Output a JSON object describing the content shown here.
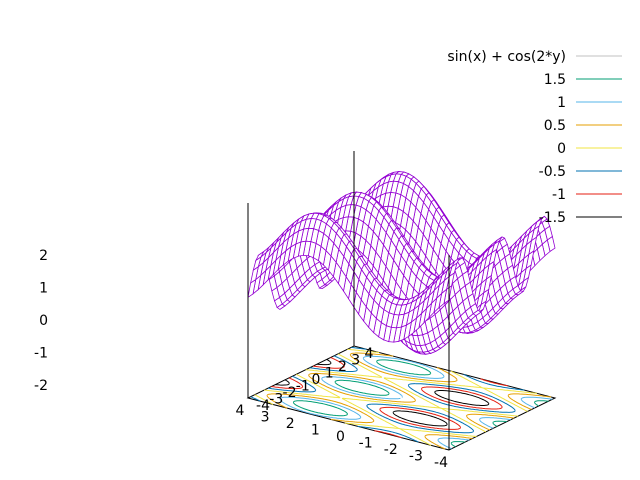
{
  "chart_data": {
    "type": "surface-contour",
    "function": "sin(x) + cos(2*y)",
    "xlim": [
      -4,
      4
    ],
    "ylim": [
      -4,
      4
    ],
    "zlim": [
      -2,
      2
    ],
    "x_ticks": [
      "-4",
      "-3",
      "-2",
      "-1",
      "0",
      "1",
      "2",
      "3",
      "4"
    ],
    "y_ticks": [
      "-4",
      "-3",
      "-2",
      "-1",
      "0",
      "1",
      "2",
      "3",
      "4"
    ],
    "z_ticks": [
      "-2",
      "-1",
      "0",
      "1",
      "2"
    ],
    "grid": false,
    "legend_position": "top-right",
    "surface": {
      "name": "sin(x) + cos(2*y)",
      "color": "#9400d3"
    },
    "contours": [
      {
        "label": "1.5",
        "level": 1.5,
        "color": "#009e73"
      },
      {
        "label": "1",
        "level": 1,
        "color": "#56b4e9"
      },
      {
        "label": "0.5",
        "level": 0.5,
        "color": "#e69f00"
      },
      {
        "label": "0",
        "level": 0,
        "color": "#f0e442"
      },
      {
        "label": "-0.5",
        "level": -0.5,
        "color": "#0072b2"
      },
      {
        "label": "-1",
        "level": -1,
        "color": "#e51e10"
      },
      {
        "label": "-1.5",
        "level": -1.5,
        "color": "#000000"
      }
    ],
    "surface_legend_color": "#c0c0c0"
  }
}
